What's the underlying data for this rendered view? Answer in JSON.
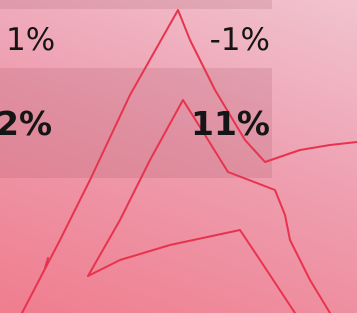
{
  "table": {
    "rows": [
      [
        "1%",
        "-1%"
      ],
      [
        "2%",
        "11%"
      ]
    ]
  }
}
